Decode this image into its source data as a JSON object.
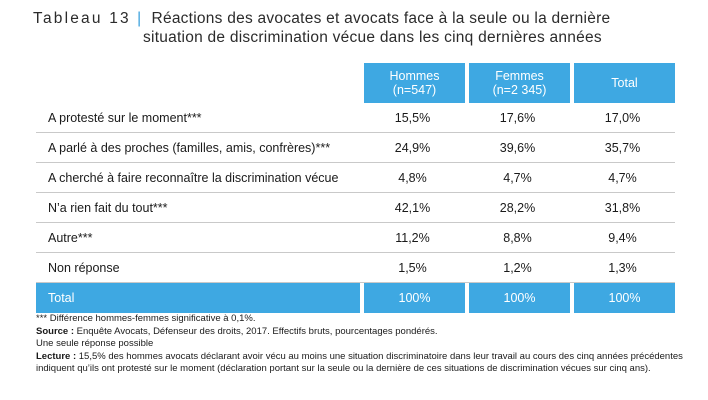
{
  "title": {
    "prefix": "Tableau 13",
    "separator": "|",
    "line1": "Réactions des avocates et avocats face à la seule ou la dernière",
    "line2": "situation de discrimination  vécue dans les cinq dernières années"
  },
  "table": {
    "headers": [
      {
        "line1": "Hommes",
        "line2": "(n=547)"
      },
      {
        "line1": "Femmes",
        "line2": "(n=2 345)"
      },
      {
        "line1": "Total",
        "line2": ""
      }
    ],
    "rows": [
      {
        "label": "A protesté sur le moment***",
        "values": [
          "15,5%",
          "17,6%",
          "17,0%"
        ]
      },
      {
        "label": "A parlé à des proches (familles, amis, confrères)***",
        "values": [
          "24,9%",
          "39,6%",
          "35,7%"
        ]
      },
      {
        "label": "A cherché à faire reconnaître la discrimination vécue",
        "values": [
          "4,8%",
          "4,7%",
          "4,7%"
        ]
      },
      {
        "label": "N’a rien fait du tout***",
        "values": [
          "42,1%",
          "28,2%",
          "31,8%"
        ]
      },
      {
        "label": "Autre***",
        "values": [
          "11,2%",
          "8,8%",
          "9,4%"
        ]
      },
      {
        "label": "Non réponse",
        "values": [
          "1,5%",
          "1,2%",
          "1,3%"
        ]
      }
    ],
    "total": {
      "label": "Total",
      "values": [
        "100%",
        "100%",
        "100%"
      ]
    }
  },
  "notes": {
    "significance": "*** Différence hommes-femmes significative à 0,1%.",
    "source_label": "Source :",
    "source_text": " Enquête Avocats, Défenseur des droits, 2017. Effectifs bruts, pourcentages pondérés.",
    "single_answer": "Une seule réponse possible",
    "reading_label": "Lecture :",
    "reading_text": " 15,5% des hommes avocats déclarant avoir vécu au moins une situation discriminatoire dans leur travail au cours des cinq années précédentes indiquent qu’ils ont protesté sur le moment (déclaration portant sur la seule ou la dernière de ces situations de discrimination vécues sur cinq ans)."
  },
  "colors": {
    "accent": "#3ea8e2",
    "row_border": "#c9c9c9"
  }
}
